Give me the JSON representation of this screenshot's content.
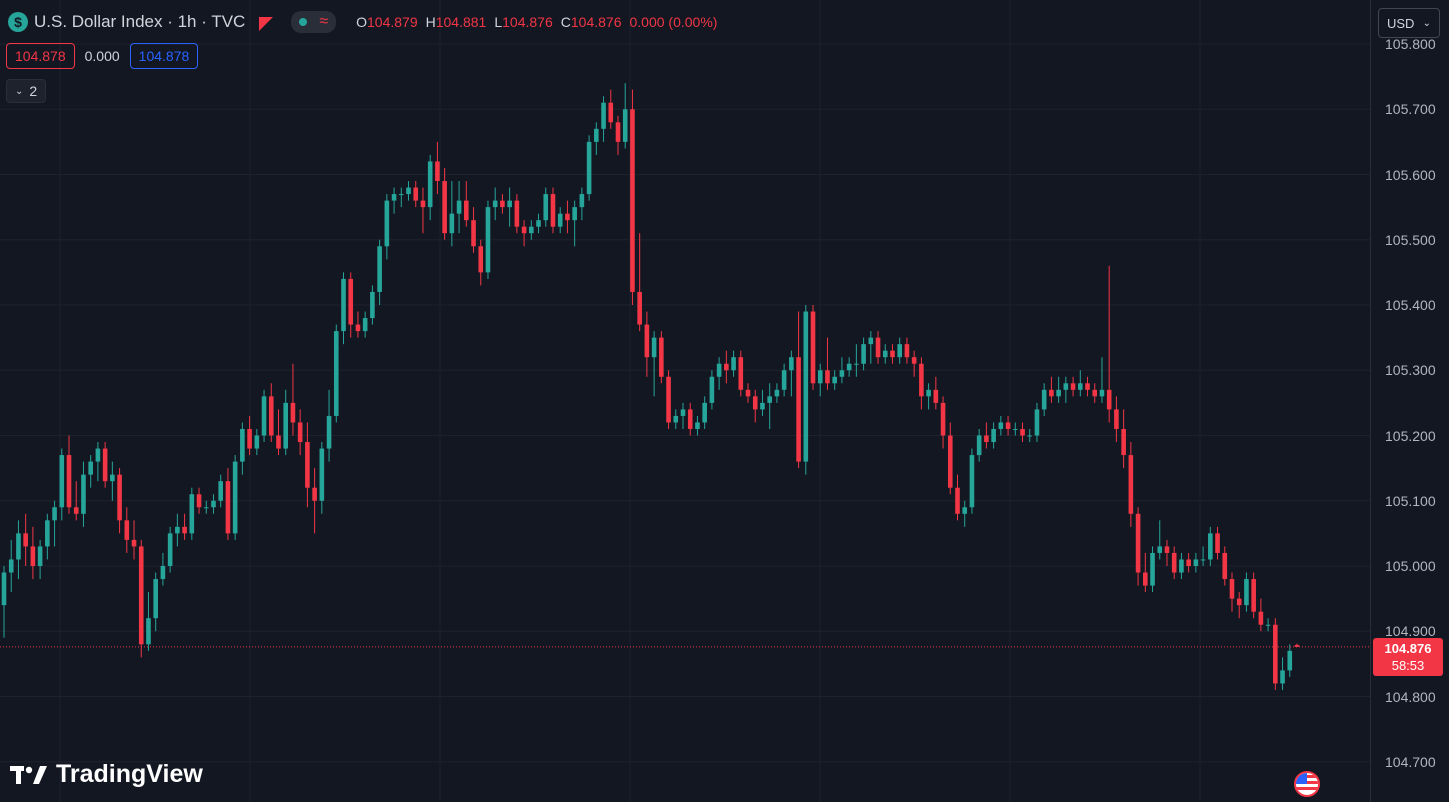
{
  "header": {
    "symbol_icon": "$",
    "title": "U.S. Dollar Index · 1h · TVC",
    "ohlc": {
      "o_label": "O",
      "o": "104.879",
      "h_label": "H",
      "h": "104.881",
      "l_label": "L",
      "l": "104.876",
      "c_label": "C",
      "c": "104.876",
      "change": "0.000 (0.00%)"
    },
    "bid": "104.878",
    "spread": "0.000",
    "ask": "104.878",
    "collapsed_indicators": "2"
  },
  "currency_select": {
    "value": "USD"
  },
  "last_price": {
    "price": "104.876",
    "countdown": "58:53"
  },
  "logo": {
    "text": "TradingView"
  },
  "colors": {
    "up": "#26a69a",
    "down": "#f23645",
    "background": "#131722",
    "grid": "#1e222d"
  },
  "chart_data": {
    "type": "candlestick",
    "title": "U.S. Dollar Index · 1h · TVC",
    "y_range": [
      104.68,
      105.82
    ],
    "y_ticks": [
      "105.800",
      "105.700",
      "105.600",
      "105.500",
      "105.400",
      "105.300",
      "105.200",
      "105.100",
      "105.000",
      "104.900",
      "104.800",
      "104.700"
    ],
    "last_price": 104.876,
    "legend": "top-left",
    "grid": true,
    "ohlc": [
      [
        104.94,
        105.0,
        104.89,
        104.99
      ],
      [
        104.99,
        105.04,
        104.96,
        105.01
      ],
      [
        105.01,
        105.07,
        104.98,
        105.05
      ],
      [
        105.05,
        105.08,
        105.0,
        105.03
      ],
      [
        105.03,
        105.06,
        104.98,
        105.0
      ],
      [
        105.0,
        105.04,
        104.98,
        105.03
      ],
      [
        105.03,
        105.08,
        105.01,
        105.07
      ],
      [
        105.07,
        105.1,
        105.03,
        105.09
      ],
      [
        105.09,
        105.18,
        105.07,
        105.17
      ],
      [
        105.17,
        105.2,
        105.08,
        105.09
      ],
      [
        105.09,
        105.13,
        105.07,
        105.08
      ],
      [
        105.08,
        105.16,
        105.06,
        105.14
      ],
      [
        105.14,
        105.17,
        105.12,
        105.16
      ],
      [
        105.16,
        105.19,
        105.13,
        105.18
      ],
      [
        105.18,
        105.19,
        105.12,
        105.13
      ],
      [
        105.13,
        105.16,
        105.1,
        105.14
      ],
      [
        105.14,
        105.15,
        105.05,
        105.07
      ],
      [
        105.07,
        105.09,
        105.02,
        105.04
      ],
      [
        105.04,
        105.07,
        105.01,
        105.03
      ],
      [
        105.03,
        105.04,
        104.86,
        104.88
      ],
      [
        104.88,
        104.96,
        104.87,
        104.92
      ],
      [
        104.92,
        104.99,
        104.9,
        104.98
      ],
      [
        104.98,
        105.02,
        104.97,
        105.0
      ],
      [
        105.0,
        105.06,
        104.99,
        105.05
      ],
      [
        105.05,
        105.08,
        105.03,
        105.06
      ],
      [
        105.06,
        105.08,
        105.04,
        105.05
      ],
      [
        105.05,
        105.12,
        105.04,
        105.11
      ],
      [
        105.11,
        105.12,
        105.08,
        105.09
      ],
      [
        105.09,
        105.1,
        105.08,
        105.09
      ],
      [
        105.09,
        105.11,
        105.08,
        105.1
      ],
      [
        105.1,
        105.14,
        105.09,
        105.13
      ],
      [
        105.13,
        105.15,
        105.04,
        105.05
      ],
      [
        105.05,
        105.17,
        105.04,
        105.16
      ],
      [
        105.16,
        105.22,
        105.14,
        105.21
      ],
      [
        105.21,
        105.23,
        105.17,
        105.18
      ],
      [
        105.18,
        105.21,
        105.17,
        105.2
      ],
      [
        105.2,
        105.27,
        105.19,
        105.26
      ],
      [
        105.26,
        105.28,
        105.19,
        105.2
      ],
      [
        105.2,
        105.24,
        105.17,
        105.18
      ],
      [
        105.18,
        105.27,
        105.17,
        105.25
      ],
      [
        105.25,
        105.31,
        105.2,
        105.22
      ],
      [
        105.22,
        105.24,
        105.17,
        105.19
      ],
      [
        105.19,
        105.22,
        105.09,
        105.12
      ],
      [
        105.12,
        105.15,
        105.05,
        105.1
      ],
      [
        105.1,
        105.19,
        105.08,
        105.18
      ],
      [
        105.18,
        105.27,
        105.16,
        105.23
      ],
      [
        105.23,
        105.37,
        105.22,
        105.36
      ],
      [
        105.36,
        105.45,
        105.34,
        105.44
      ],
      [
        105.44,
        105.45,
        105.35,
        105.37
      ],
      [
        105.37,
        105.39,
        105.35,
        105.36
      ],
      [
        105.36,
        105.39,
        105.35,
        105.38
      ],
      [
        105.38,
        105.43,
        105.37,
        105.42
      ],
      [
        105.42,
        105.5,
        105.4,
        105.49
      ],
      [
        105.49,
        105.57,
        105.47,
        105.56
      ],
      [
        105.56,
        105.58,
        105.54,
        105.57
      ],
      [
        105.57,
        105.58,
        105.55,
        105.57
      ],
      [
        105.57,
        105.59,
        105.56,
        105.58
      ],
      [
        105.58,
        105.59,
        105.55,
        105.56
      ],
      [
        105.56,
        105.58,
        105.51,
        105.55
      ],
      [
        105.55,
        105.63,
        105.53,
        105.62
      ],
      [
        105.62,
        105.65,
        105.57,
        105.59
      ],
      [
        105.59,
        105.61,
        105.5,
        105.51
      ],
      [
        105.51,
        105.59,
        105.49,
        105.54
      ],
      [
        105.54,
        105.59,
        105.51,
        105.56
      ],
      [
        105.56,
        105.59,
        105.52,
        105.53
      ],
      [
        105.53,
        105.55,
        105.48,
        105.49
      ],
      [
        105.49,
        105.5,
        105.43,
        105.45
      ],
      [
        105.45,
        105.56,
        105.44,
        105.55
      ],
      [
        105.55,
        105.58,
        105.53,
        105.56
      ],
      [
        105.56,
        105.57,
        105.54,
        105.55
      ],
      [
        105.55,
        105.58,
        105.52,
        105.56
      ],
      [
        105.56,
        105.57,
        105.51,
        105.52
      ],
      [
        105.52,
        105.53,
        105.49,
        105.51
      ],
      [
        105.51,
        105.53,
        105.5,
        105.52
      ],
      [
        105.52,
        105.54,
        105.51,
        105.53
      ],
      [
        105.53,
        105.58,
        105.52,
        105.57
      ],
      [
        105.57,
        105.58,
        105.51,
        105.52
      ],
      [
        105.52,
        105.55,
        105.51,
        105.54
      ],
      [
        105.54,
        105.56,
        105.51,
        105.53
      ],
      [
        105.53,
        105.56,
        105.49,
        105.55
      ],
      [
        105.55,
        105.58,
        105.53,
        105.57
      ],
      [
        105.57,
        105.66,
        105.56,
        105.65
      ],
      [
        105.65,
        105.68,
        105.63,
        105.67
      ],
      [
        105.67,
        105.72,
        105.65,
        105.71
      ],
      [
        105.71,
        105.73,
        105.67,
        105.68
      ],
      [
        105.68,
        105.69,
        105.63,
        105.65
      ],
      [
        105.65,
        105.74,
        105.64,
        105.7
      ],
      [
        105.7,
        105.73,
        105.4,
        105.42
      ],
      [
        105.42,
        105.51,
        105.36,
        105.37
      ],
      [
        105.37,
        105.39,
        105.29,
        105.32
      ],
      [
        105.32,
        105.36,
        105.26,
        105.35
      ],
      [
        105.35,
        105.36,
        105.28,
        105.29
      ],
      [
        105.29,
        105.3,
        105.21,
        105.22
      ],
      [
        105.22,
        105.24,
        105.21,
        105.23
      ],
      [
        105.23,
        105.25,
        105.21,
        105.24
      ],
      [
        105.24,
        105.25,
        105.2,
        105.21
      ],
      [
        105.21,
        105.23,
        105.2,
        105.22
      ],
      [
        105.22,
        105.26,
        105.21,
        105.25
      ],
      [
        105.25,
        105.3,
        105.24,
        105.29
      ],
      [
        105.29,
        105.32,
        105.27,
        105.31
      ],
      [
        105.31,
        105.33,
        105.28,
        105.3
      ],
      [
        105.3,
        105.33,
        105.29,
        105.32
      ],
      [
        105.32,
        105.33,
        105.26,
        105.27
      ],
      [
        105.27,
        105.28,
        105.25,
        105.26
      ],
      [
        105.26,
        105.27,
        105.22,
        105.24
      ],
      [
        105.24,
        105.27,
        105.23,
        105.25
      ],
      [
        105.25,
        105.28,
        105.21,
        105.26
      ],
      [
        105.26,
        105.28,
        105.25,
        105.27
      ],
      [
        105.27,
        105.31,
        105.26,
        105.3
      ],
      [
        105.3,
        105.33,
        105.26,
        105.32
      ],
      [
        105.32,
        105.39,
        105.15,
        105.16
      ],
      [
        105.16,
        105.4,
        105.14,
        105.39
      ],
      [
        105.39,
        105.4,
        105.27,
        105.28
      ],
      [
        105.28,
        105.31,
        105.26,
        105.3
      ],
      [
        105.3,
        105.35,
        105.27,
        105.28
      ],
      [
        105.28,
        105.3,
        105.27,
        105.29
      ],
      [
        105.29,
        105.32,
        105.28,
        105.3
      ],
      [
        105.3,
        105.32,
        105.29,
        105.31
      ],
      [
        105.31,
        105.34,
        105.29,
        105.31
      ],
      [
        105.31,
        105.35,
        105.3,
        105.34
      ],
      [
        105.34,
        105.36,
        105.31,
        105.35
      ],
      [
        105.35,
        105.36,
        105.31,
        105.32
      ],
      [
        105.32,
        105.34,
        105.31,
        105.33
      ],
      [
        105.33,
        105.34,
        105.31,
        105.32
      ],
      [
        105.32,
        105.35,
        105.31,
        105.34
      ],
      [
        105.34,
        105.35,
        105.31,
        105.32
      ],
      [
        105.32,
        105.33,
        105.29,
        105.31
      ],
      [
        105.31,
        105.32,
        105.24,
        105.26
      ],
      [
        105.26,
        105.28,
        105.24,
        105.27
      ],
      [
        105.27,
        105.29,
        105.24,
        105.25
      ],
      [
        105.25,
        105.26,
        105.18,
        105.2
      ],
      [
        105.2,
        105.22,
        105.11,
        105.12
      ],
      [
        105.12,
        105.14,
        105.07,
        105.08
      ],
      [
        105.08,
        105.1,
        105.06,
        105.09
      ],
      [
        105.09,
        105.18,
        105.08,
        105.17
      ],
      [
        105.17,
        105.21,
        105.16,
        105.2
      ],
      [
        105.2,
        105.22,
        105.18,
        105.19
      ],
      [
        105.19,
        105.22,
        105.18,
        105.21
      ],
      [
        105.21,
        105.23,
        105.2,
        105.22
      ],
      [
        105.22,
        105.23,
        105.2,
        105.21
      ],
      [
        105.21,
        105.22,
        105.2,
        105.21
      ],
      [
        105.21,
        105.22,
        105.19,
        105.2
      ],
      [
        105.2,
        105.21,
        105.19,
        105.2
      ],
      [
        105.2,
        105.25,
        105.19,
        105.24
      ],
      [
        105.24,
        105.28,
        105.23,
        105.27
      ],
      [
        105.27,
        105.29,
        105.25,
        105.26
      ],
      [
        105.26,
        105.29,
        105.25,
        105.27
      ],
      [
        105.27,
        105.29,
        105.25,
        105.28
      ],
      [
        105.28,
        105.29,
        105.26,
        105.27
      ],
      [
        105.27,
        105.3,
        105.26,
        105.28
      ],
      [
        105.28,
        105.29,
        105.26,
        105.27
      ],
      [
        105.27,
        105.28,
        105.25,
        105.26
      ],
      [
        105.26,
        105.32,
        105.25,
        105.27
      ],
      [
        105.27,
        105.46,
        105.22,
        105.24
      ],
      [
        105.24,
        105.26,
        105.19,
        105.21
      ],
      [
        105.21,
        105.24,
        105.15,
        105.17
      ],
      [
        105.17,
        105.19,
        105.06,
        105.08
      ],
      [
        105.08,
        105.09,
        104.97,
        104.99
      ],
      [
        104.99,
        105.02,
        104.96,
        104.97
      ],
      [
        104.97,
        105.03,
        104.96,
        105.02
      ],
      [
        105.02,
        105.07,
        105.01,
        105.03
      ],
      [
        105.03,
        105.04,
        105.0,
        105.02
      ],
      [
        105.02,
        105.03,
        104.98,
        104.99
      ],
      [
        104.99,
        105.02,
        104.98,
        105.01
      ],
      [
        105.01,
        105.02,
        104.99,
        105.0
      ],
      [
        105.0,
        105.02,
        104.99,
        105.01
      ],
      [
        105.01,
        105.03,
        105.0,
        105.01
      ],
      [
        105.01,
        105.06,
        105.0,
        105.05
      ],
      [
        105.05,
        105.06,
        105.01,
        105.02
      ],
      [
        105.02,
        105.03,
        104.97,
        104.98
      ],
      [
        104.98,
        104.99,
        104.93,
        104.95
      ],
      [
        104.95,
        104.96,
        104.92,
        104.94
      ],
      [
        104.94,
        104.99,
        104.93,
        104.98
      ],
      [
        104.98,
        104.99,
        104.92,
        104.93
      ],
      [
        104.93,
        104.95,
        104.9,
        104.91
      ],
      [
        104.91,
        104.92,
        104.9,
        104.91
      ],
      [
        104.91,
        104.92,
        104.81,
        104.82
      ],
      [
        104.82,
        104.86,
        104.81,
        104.84
      ],
      [
        104.84,
        104.88,
        104.83,
        104.87
      ],
      [
        104.879,
        104.881,
        104.876,
        104.876
      ]
    ]
  }
}
